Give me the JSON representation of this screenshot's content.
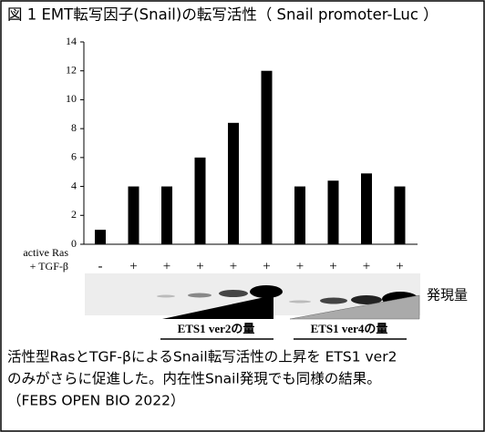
{
  "chart_data": {
    "type": "bar",
    "title": "図 1 EMT転写因子(Snail)の転写活性（ Snail promoter-Luc ）",
    "row_labels": [
      "active Ras",
      "+ TGF-β"
    ],
    "categories": [
      "-",
      "+",
      "+",
      "+",
      "+",
      "+",
      "+",
      "+",
      "+",
      "+"
    ],
    "values": [
      1,
      4,
      4,
      6,
      8.4,
      12,
      4,
      4.4,
      4.9,
      4
    ],
    "color": "#000000",
    "ylim": [
      0,
      14
    ],
    "yticks": [
      0,
      2,
      4,
      6,
      8,
      10,
      12,
      14
    ],
    "grid": false
  },
  "blot_label": "発現量",
  "gradient_labels": [
    "ETS1 ver2の量",
    "ETS1 ver4の量"
  ],
  "caption": [
    "活性型RasとTGF-βによるSnail転写活性の上昇を ETS1 ver2",
    "のみがさらに促進した。内在性Snail発現でも同様の結果。",
    "（FEBS OPEN BIO 2022）"
  ]
}
